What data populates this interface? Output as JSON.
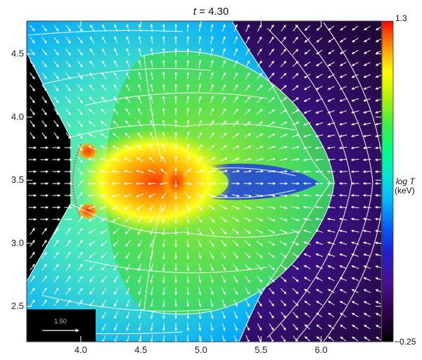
{
  "chart_data": {
    "type": "heatmap",
    "title": "t = 4.30",
    "title_var": "t",
    "title_value": "4.30",
    "x_ticks": [
      "4.0",
      "4.5",
      "5.0",
      "5.5",
      "6.0"
    ],
    "x_tick_values": [
      4.0,
      4.5,
      5.0,
      5.5,
      6.0
    ],
    "y_ticks": [
      "2.5",
      "3.0",
      "3.5",
      "4.0",
      "4.5"
    ],
    "y_tick_values": [
      2.5,
      3.0,
      3.5,
      4.0,
      4.5
    ],
    "xlim": [
      3.55,
      6.5
    ],
    "ylim": [
      2.22,
      4.76
    ],
    "colorbar": {
      "label_line1": "log T",
      "label_line2": "(keV)",
      "max_label": "1.3",
      "min_label": "−0.25",
      "range": [
        -0.25,
        1.3
      ],
      "colors": [
        "#000000",
        "#2a0040",
        "#4b0f8f",
        "#2020d0",
        "#0060ff",
        "#00b8ff",
        "#00e8d0",
        "#00ff80",
        "#40f040",
        "#b0f000",
        "#ffff00",
        "#ffb000",
        "#ff5000",
        "#ff0000"
      ]
    },
    "legend_arrow_label": "1.50",
    "colors": {
      "outer_medium": "#3a1170",
      "shock_center": "#ff6010",
      "field_lines": "#ffffff"
    }
  }
}
